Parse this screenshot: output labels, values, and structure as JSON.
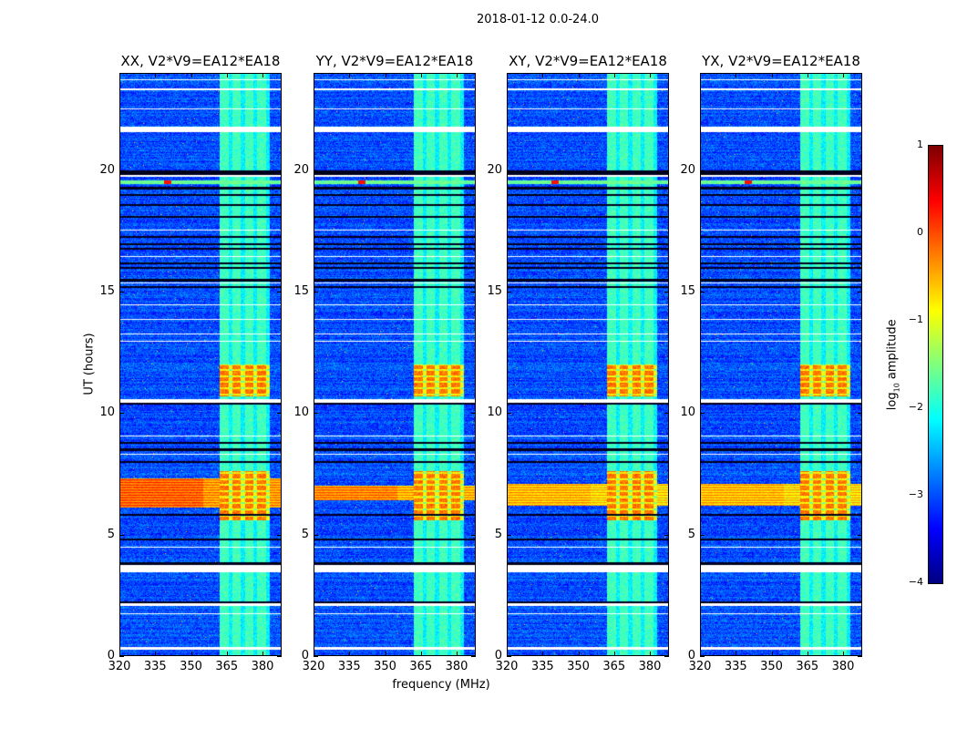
{
  "chart_data": {
    "type": "heatmap",
    "title": "2018-01-12 0.0-24.0",
    "xlabel": "frequency (MHz)",
    "ylabel": "UT (hours)",
    "xlim": [
      320,
      388
    ],
    "ylim": [
      0,
      24
    ],
    "xticks": [
      320,
      335,
      350,
      365,
      380
    ],
    "yticks": [
      0,
      5,
      10,
      15,
      20
    ],
    "panels": [
      {
        "title": "XX, V2*V9=EA12*EA18",
        "broadband_strength": 1.0,
        "broadband_hours": [
          6.1,
          7.3
        ]
      },
      {
        "title": "YY, V2*V9=EA12*EA18",
        "broadband_strength": 0.85,
        "broadband_hours": [
          6.4,
          7.0
        ]
      },
      {
        "title": "XY, V2*V9=EA12*EA18",
        "broadband_strength": 0.6,
        "broadband_hours": [
          6.2,
          7.1
        ]
      },
      {
        "title": "YX, V2*V9=EA12*EA18",
        "broadband_strength": 0.6,
        "broadband_hours": [
          6.2,
          7.1
        ]
      }
    ],
    "background_log10_amplitude": -3.0,
    "rfi_band_mhz": [
      362,
      383
    ],
    "rfi_band_level": -2.0,
    "strong_rfi_hours": [
      [
        10.7,
        12.0
      ],
      [
        5.6,
        7.6
      ]
    ],
    "strong_rfi_level": -0.3,
    "rfi_line": {
      "hour": 19.55,
      "freq_mhz": 340,
      "level": 0.3
    },
    "flagged_hours": [
      [
        0.25,
        0.35
      ],
      [
        1.7,
        1.75
      ],
      [
        2.05,
        2.15
      ],
      [
        3.45,
        3.75
      ],
      [
        4.45,
        4.5
      ],
      [
        8.3,
        8.35
      ],
      [
        9.05,
        9.1
      ],
      [
        10.45,
        10.6
      ],
      [
        12.95,
        13.0
      ],
      [
        13.25,
        13.3
      ],
      [
        13.85,
        13.9
      ],
      [
        14.45,
        14.5
      ],
      [
        15.35,
        15.4
      ],
      [
        16.45,
        16.5
      ],
      [
        17.55,
        17.6
      ],
      [
        19.75,
        19.85
      ],
      [
        21.6,
        21.85
      ],
      [
        22.55,
        22.6
      ],
      [
        23.35,
        23.4
      ],
      [
        23.75,
        23.8
      ]
    ],
    "dropout_hours": [
      2.2,
      3.8,
      4.8,
      5.8,
      8.0,
      8.5,
      8.8,
      10.4,
      15.2,
      15.5,
      16.0,
      16.2,
      16.8,
      17.0,
      17.3,
      18.1,
      18.6,
      19.0,
      19.3,
      19.9,
      20.0
    ],
    "colorbar": {
      "label": "log10 amplitude",
      "label_main": "log",
      "label_sub": "10",
      "label_rest": " amplitude",
      "range": [
        -4,
        1
      ],
      "ticks": [
        "1",
        "0",
        "−1",
        "−2",
        "−3",
        "−4"
      ],
      "colormap": "jet"
    }
  }
}
